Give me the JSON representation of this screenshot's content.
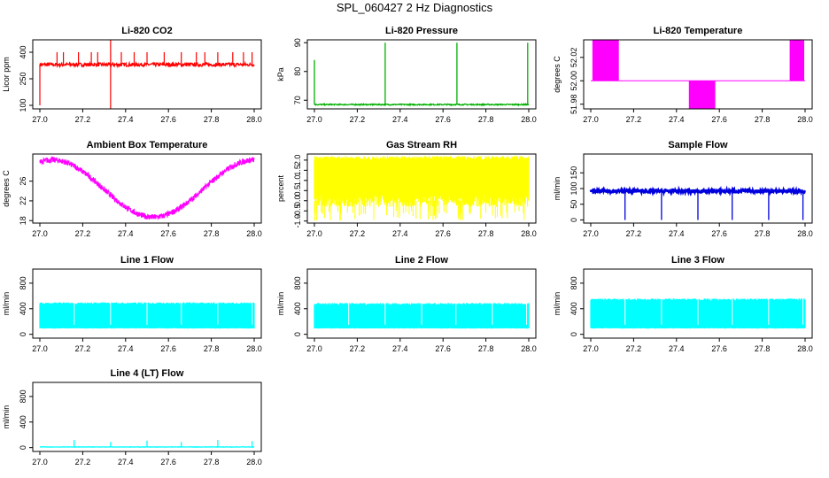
{
  "title": "SPL_060427  2 Hz Diagnostics",
  "chart_data": [
    {
      "type": "line",
      "title": "Li-820 CO2",
      "ylabel": "Licor ppm",
      "xlim": [
        27.0,
        28.0
      ],
      "ylim": [
        80,
        470
      ],
      "color": "#ff0000",
      "xticks": [
        "27.0",
        "27.2",
        "27.4",
        "27.6",
        "27.8",
        "28.0"
      ],
      "yticks": [
        {
          "v": 100,
          "label": "100"
        },
        {
          "v": 250,
          "label": "250"
        },
        {
          "v": 400,
          "label": "400"
        }
      ],
      "baseline": 330,
      "noise": 10,
      "spikes_up": [],
      "spikes_down": [],
      "wave": null,
      "band": null
    },
    {
      "type": "line",
      "title": "Li-820 Pressure",
      "ylabel": "kPa",
      "xlim": [
        27.0,
        28.0
      ],
      "ylim": [
        67,
        91
      ],
      "color": "#00b000",
      "xticks": [
        "27.0",
        "27.2",
        "27.4",
        "27.6",
        "27.8",
        "28.0"
      ],
      "yticks": [
        {
          "v": 70,
          "label": "70"
        },
        {
          "v": 80,
          "label": "80"
        },
        {
          "v": 90,
          "label": "90"
        }
      ],
      "baseline": 68.5,
      "noise": 0.2,
      "spikes_up": [
        [
          27.0,
          84
        ],
        [
          27.33,
          90
        ],
        [
          27.665,
          90
        ],
        [
          27.995,
          90
        ]
      ],
      "spikes_down": [],
      "wave": null,
      "band": null
    },
    {
      "type": "line",
      "title": "Li-820 Temperature",
      "ylabel": "degrees C",
      "xlim": [
        27.0,
        28.0
      ],
      "ylim": [
        51.976,
        52.035
      ],
      "color": "#ff00ff",
      "xticks": [
        "27.0",
        "27.2",
        "27.4",
        "27.6",
        "27.8",
        "28.0"
      ],
      "yticks": [
        {
          "v": 51.98,
          "label": "51.98"
        },
        {
          "v": 52.0,
          "label": "52.00"
        },
        {
          "v": 52.02,
          "label": "52.02"
        }
      ],
      "baseline": 52.0,
      "noise": 0,
      "spikes_up": [],
      "spikes_down": [],
      "wave": null,
      "band": null
    },
    {
      "type": "line",
      "title": "Ambient Box Temperature",
      "ylabel": "degrees C",
      "xlim": [
        27.0,
        28.0
      ],
      "ylim": [
        17.5,
        31.5
      ],
      "color": "#ff00ff",
      "xticks": [
        "27.0",
        "27.2",
        "27.4",
        "27.6",
        "27.8",
        "28.0"
      ],
      "yticks": [
        {
          "v": 18,
          "label": "18"
        },
        {
          "v": 22,
          "label": "22"
        },
        {
          "v": 26,
          "label": "26"
        }
      ],
      "baseline": null,
      "noise": 0.6,
      "spikes_up": [],
      "spikes_down": [],
      "wave": "temp",
      "band": null
    },
    {
      "type": "line",
      "title": "Gas Stream RH",
      "ylabel": "percent",
      "xlim": [
        27.0,
        28.0
      ],
      "ylim": [
        -1.1,
        2.3
      ],
      "color": "#ffff00",
      "xticks": [
        "27.0",
        "27.2",
        "27.4",
        "27.6",
        "27.8",
        "28.0"
      ],
      "yticks": [
        {
          "v": -1.0,
          "label": "-1.0"
        },
        {
          "v": -0.5,
          "label": "-0.5"
        },
        {
          "v": 0.0,
          "label": "0.0"
        },
        {
          "v": 0.5,
          "label": "0.5"
        },
        {
          "v": 1.0,
          "label": "1.0"
        },
        {
          "v": 1.5,
          "label": "1.5"
        },
        {
          "v": 2.0,
          "label": "2.0"
        }
      ],
      "baseline": null,
      "noise": 0,
      "spikes_up": [],
      "spikes_down": [],
      "wave": null,
      "band": [
        -0.3,
        2.2
      ]
    },
    {
      "type": "line",
      "title": "Sample Flow",
      "ylabel": "ml/min",
      "xlim": [
        27.0,
        28.0
      ],
      "ylim": [
        -10,
        210
      ],
      "color": "#0000dd",
      "xticks": [
        "27.0",
        "27.2",
        "27.4",
        "27.6",
        "27.8",
        "28.0"
      ],
      "yticks": [
        {
          "v": 0,
          "label": "0"
        },
        {
          "v": 50,
          "label": "50"
        },
        {
          "v": 100,
          "label": "100"
        },
        {
          "v": 150,
          "label": "150"
        }
      ],
      "baseline": 92,
      "noise": 5,
      "spikes_up": [],
      "spikes_down": [
        [
          27.16,
          0
        ],
        [
          27.33,
          0
        ],
        [
          27.5,
          0
        ],
        [
          27.66,
          0
        ],
        [
          27.83,
          0
        ],
        [
          27.99,
          0
        ]
      ],
      "wave": null,
      "band": null
    },
    {
      "type": "line",
      "title": "Line 1 Flow",
      "ylabel": "ml/min",
      "xlim": [
        27.0,
        28.0
      ],
      "ylim": [
        -60,
        1020
      ],
      "color": "#00ffff",
      "xticks": [
        "27.0",
        "27.2",
        "27.4",
        "27.6",
        "27.8",
        "28.0"
      ],
      "yticks": [
        {
          "v": 0,
          "label": "0"
        },
        {
          "v": 400,
          "label": "400"
        },
        {
          "v": 800,
          "label": "800"
        }
      ],
      "baseline": null,
      "noise": 0,
      "spikes_up": [],
      "spikes_down": [],
      "wave": null,
      "band": [
        90,
        500
      ]
    },
    {
      "type": "line",
      "title": "Line 2 Flow",
      "ylabel": "ml/min",
      "xlim": [
        27.0,
        28.0
      ],
      "ylim": [
        -60,
        1020
      ],
      "color": "#00ffff",
      "xticks": [
        "27.0",
        "27.2",
        "27.4",
        "27.6",
        "27.8",
        "28.0"
      ],
      "yticks": [
        {
          "v": 0,
          "label": "0"
        },
        {
          "v": 400,
          "label": "400"
        },
        {
          "v": 800,
          "label": "800"
        }
      ],
      "baseline": null,
      "noise": 0,
      "spikes_up": [],
      "spikes_down": [],
      "wave": null,
      "band": [
        90,
        490
      ]
    },
    {
      "type": "line",
      "title": "Line 3 Flow",
      "ylabel": "ml/min",
      "xlim": [
        27.0,
        28.0
      ],
      "ylim": [
        -60,
        1020
      ],
      "color": "#00ffff",
      "xticks": [
        "27.0",
        "27.2",
        "27.4",
        "27.6",
        "27.8",
        "28.0"
      ],
      "yticks": [
        {
          "v": 0,
          "label": "0"
        },
        {
          "v": 400,
          "label": "400"
        },
        {
          "v": 800,
          "label": "800"
        }
      ],
      "baseline": null,
      "noise": 0,
      "spikes_up": [],
      "spikes_down": [],
      "wave": null,
      "band": [
        90,
        560
      ]
    },
    {
      "type": "line",
      "title": "Line 4 (LT) Flow",
      "ylabel": "ml/min",
      "xlim": [
        27.0,
        28.0
      ],
      "ylim": [
        -60,
        1020
      ],
      "color": "#00ffff",
      "xticks": [
        "27.0",
        "27.2",
        "27.4",
        "27.6",
        "27.8",
        "28.0"
      ],
      "yticks": [
        {
          "v": 0,
          "label": "0"
        },
        {
          "v": 400,
          "label": "400"
        },
        {
          "v": 800,
          "label": "800"
        }
      ],
      "baseline": 10,
      "noise": 3,
      "spikes_up": [
        [
          27.16,
          120
        ],
        [
          27.33,
          90
        ],
        [
          27.5,
          110
        ],
        [
          27.66,
          90
        ],
        [
          27.83,
          120
        ],
        [
          27.99,
          100
        ]
      ],
      "spikes_down": [],
      "wave": null,
      "band": null
    }
  ]
}
